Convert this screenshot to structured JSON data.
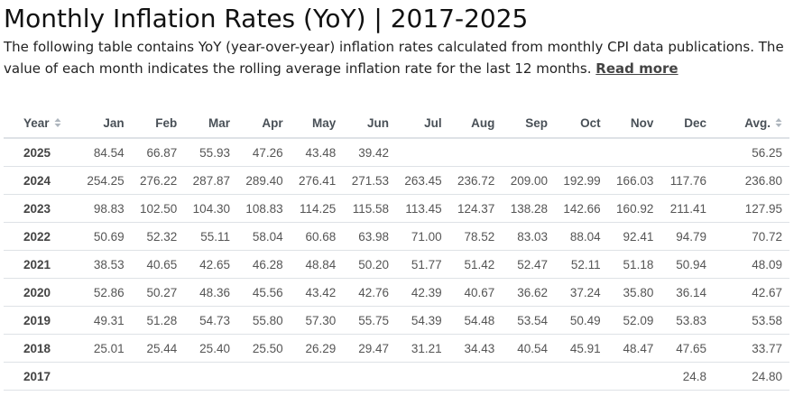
{
  "header": {
    "title": "Monthly Inflation Rates (YoY) | 2017-2025",
    "description": "The following table contains YoY (year-over-year) inflation rates calculated from monthly CPI data publications. The value of each month indicates the rolling average inflation rate for the last 12 months.",
    "read_more_label": "Read more"
  },
  "table": {
    "columns": [
      "Year",
      "Jan",
      "Feb",
      "Mar",
      "Apr",
      "May",
      "Jun",
      "Jul",
      "Aug",
      "Sep",
      "Oct",
      "Nov",
      "Dec",
      "Avg."
    ],
    "sortable_columns": [
      "Year",
      "Avg."
    ],
    "rows": [
      [
        "2025",
        "84.54",
        "66.87",
        "55.93",
        "47.26",
        "43.48",
        "39.42",
        "",
        "",
        "",
        "",
        "",
        "",
        "56.25"
      ],
      [
        "2024",
        "254.25",
        "276.22",
        "287.87",
        "289.40",
        "276.41",
        "271.53",
        "263.45",
        "236.72",
        "209.00",
        "192.99",
        "166.03",
        "117.76",
        "236.80"
      ],
      [
        "2023",
        "98.83",
        "102.50",
        "104.30",
        "108.83",
        "114.25",
        "115.58",
        "113.45",
        "124.37",
        "138.28",
        "142.66",
        "160.92",
        "211.41",
        "127.95"
      ],
      [
        "2022",
        "50.69",
        "52.32",
        "55.11",
        "58.04",
        "60.68",
        "63.98",
        "71.00",
        "78.52",
        "83.03",
        "88.04",
        "92.41",
        "94.79",
        "70.72"
      ],
      [
        "2021",
        "38.53",
        "40.65",
        "42.65",
        "46.28",
        "48.84",
        "50.20",
        "51.77",
        "51.42",
        "52.47",
        "52.11",
        "51.18",
        "50.94",
        "48.09"
      ],
      [
        "2020",
        "52.86",
        "50.27",
        "48.36",
        "45.56",
        "43.42",
        "42.76",
        "42.39",
        "40.67",
        "36.62",
        "37.24",
        "35.80",
        "36.14",
        "42.67"
      ],
      [
        "2019",
        "49.31",
        "51.28",
        "54.73",
        "55.80",
        "57.30",
        "55.75",
        "54.39",
        "54.48",
        "53.54",
        "50.49",
        "52.09",
        "53.83",
        "53.58"
      ],
      [
        "2018",
        "25.01",
        "25.44",
        "25.40",
        "25.50",
        "26.29",
        "29.47",
        "31.21",
        "34.43",
        "40.54",
        "45.91",
        "48.47",
        "47.65",
        "33.77"
      ],
      [
        "2017",
        "",
        "",
        "",
        "",
        "",
        "",
        "",
        "",
        "",
        "",
        "",
        "24.8",
        "24.80"
      ]
    ]
  },
  "icons": {
    "sort": "sort-icon"
  },
  "colors": {
    "sort_icon": "#adb5bd",
    "border": "#dee2e6"
  }
}
